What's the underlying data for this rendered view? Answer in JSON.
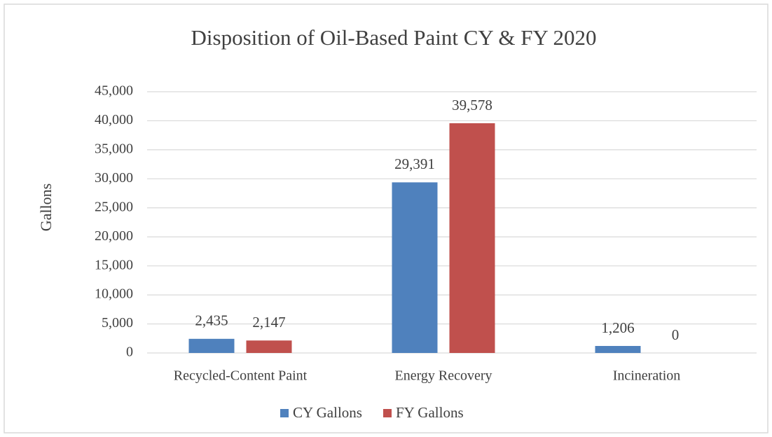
{
  "chart_data": {
    "type": "bar",
    "title": "Disposition of Oil-Based Paint CY & FY 2020",
    "y_label": "Gallons",
    "categories": [
      "Recycled-Content Paint",
      "Energy Recovery",
      "Incineration"
    ],
    "series": [
      {
        "name": "CY Gallons",
        "color": "#4f81bd",
        "values": [
          2435,
          29391,
          1206
        ],
        "value_labels": [
          "2,435",
          "29,391",
          "1,206"
        ]
      },
      {
        "name": "FY Gallons",
        "color": "#c0504d",
        "values": [
          2147,
          39578,
          0
        ],
        "value_labels": [
          "2,147",
          "39,578",
          "0"
        ]
      }
    ],
    "ylim": [
      0,
      45000
    ],
    "yticks": [
      0,
      {
        "value": 5000,
        "label": "5,000"
      },
      {
        "value": 10000,
        "label": "10,000"
      },
      {
        "value": 15000,
        "label": "15,000"
      },
      {
        "value": 20000,
        "label": "20,000"
      },
      {
        "value": 25000,
        "label": "25,000"
      },
      {
        "value": 30000,
        "label": "30,000"
      },
      {
        "value": 35000,
        "label": "35,000"
      },
      {
        "value": 40000,
        "label": "40,000"
      },
      {
        "value": 45000,
        "label": "45,000"
      }
    ],
    "grid": true,
    "legend": "bottom"
  }
}
